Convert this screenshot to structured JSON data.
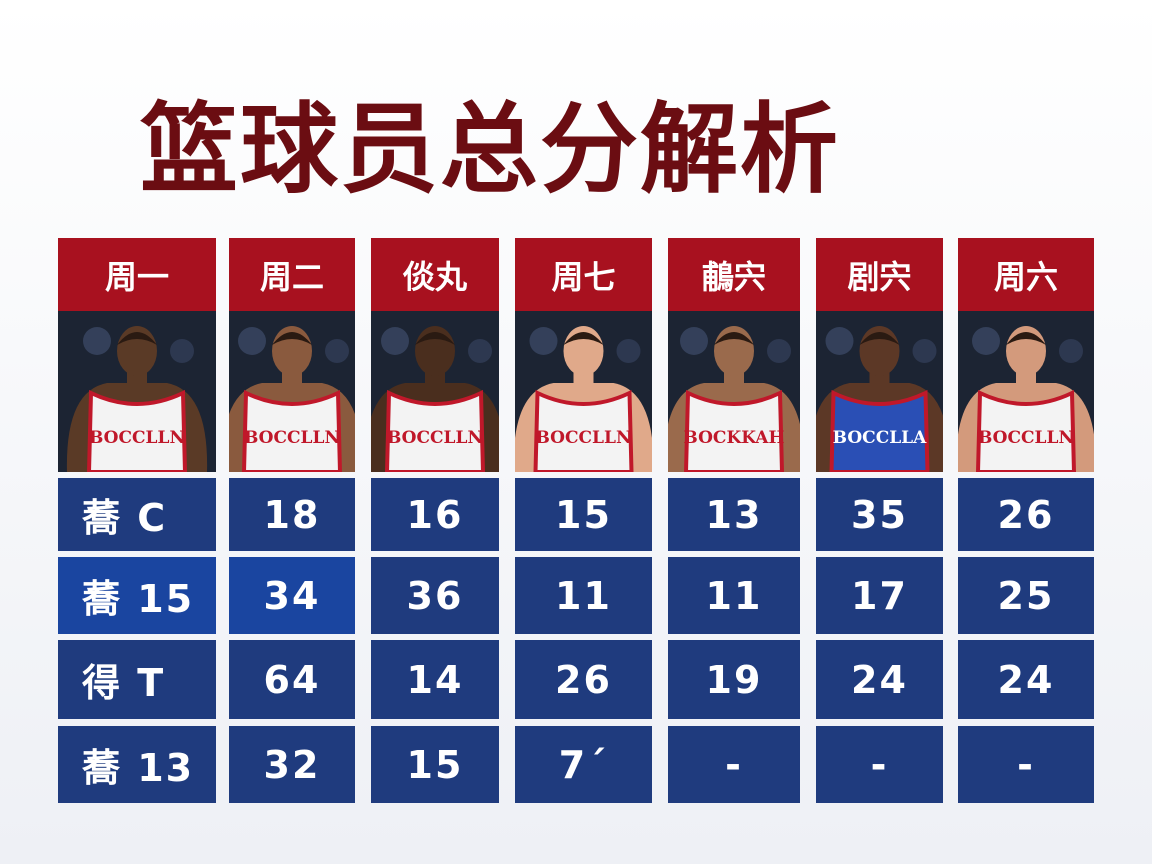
{
  "title": "篮球员总分解析",
  "columns": [
    {
      "header": "周一",
      "jersey": "BOCCLLN"
    },
    {
      "header": "周二",
      "jersey": "BOCCLLN"
    },
    {
      "header": "倓丸",
      "jersey": "BOCCLLN"
    },
    {
      "header": "周七",
      "jersey": "BOCCLLN"
    },
    {
      "header": "鵏宍",
      "jersey": "BOCKKAH"
    },
    {
      "header": "剧宍",
      "jersey": "BOCCLLA"
    },
    {
      "header": "周六",
      "jersey": "BOCCLLN"
    }
  ],
  "rows": [
    [
      "蕎 C",
      18,
      16,
      15,
      13,
      35,
      26
    ],
    [
      "蕎 15",
      34,
      36,
      11,
      11,
      17,
      25
    ],
    [
      "得 T",
      64,
      14,
      26,
      19,
      24,
      24
    ],
    [
      "蕎 13",
      32,
      15,
      "7´",
      "-",
      "-",
      "-"
    ]
  ]
}
